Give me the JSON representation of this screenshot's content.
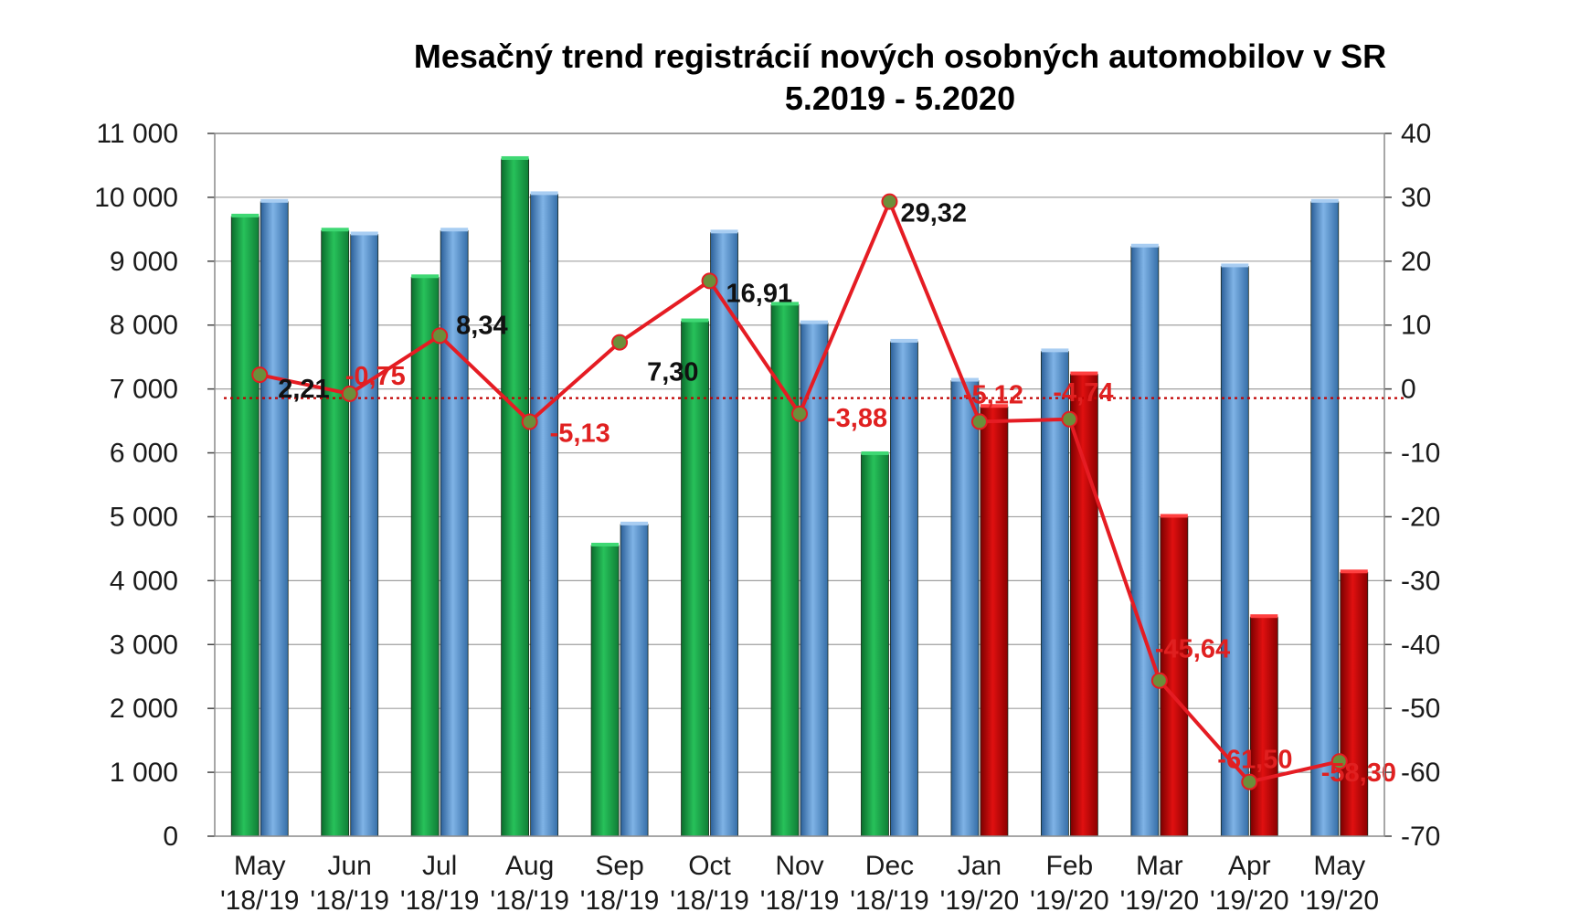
{
  "chart_data": {
    "type": "bar",
    "title": "Mesačný trend registrácií nových osobných automobilov  v SR",
    "subtitle": "5.2019 - 5.2020",
    "categories": [
      {
        "month": "May",
        "period": "'18/'19"
      },
      {
        "month": "Jun",
        "period": "'18/'19"
      },
      {
        "month": "Jul",
        "period": "'18/'19"
      },
      {
        "month": "Aug",
        "period": "'18/'19"
      },
      {
        "month": "Sep",
        "period": "'18/'19"
      },
      {
        "month": "Oct",
        "period": "'18/'19"
      },
      {
        "month": "Nov",
        "period": "'18/'19"
      },
      {
        "month": "Dec",
        "period": "'18/'19"
      },
      {
        "month": "Jan",
        "period": "'19/'20"
      },
      {
        "month": "Feb",
        "period": "'19/'20"
      },
      {
        "month": "Mar",
        "period": "'19/'20"
      },
      {
        "month": "Apr",
        "period": "'19/'20"
      },
      {
        "month": "May",
        "period": "'19/'20"
      }
    ],
    "series": [
      {
        "kind": "bar",
        "axis": "left",
        "position": "left",
        "colors": [
          "green",
          "green",
          "green",
          "green",
          "green",
          "green",
          "green",
          "green",
          "blue",
          "blue",
          "blue",
          "blue",
          "blue"
        ],
        "values": [
          9700,
          9480,
          8750,
          10600,
          4550,
          8060,
          8320,
          5980,
          7130,
          7590,
          9230,
          8920,
          9930
        ]
      },
      {
        "kind": "bar",
        "axis": "left",
        "position": "right",
        "colors": [
          "blue",
          "blue",
          "blue",
          "blue",
          "blue",
          "blue",
          "blue",
          "blue",
          "red",
          "red",
          "red",
          "red",
          "red"
        ],
        "values": [
          9930,
          9420,
          9480,
          10050,
          4880,
          9450,
          8030,
          7740,
          6720,
          7230,
          5000,
          3430,
          4130
        ]
      },
      {
        "kind": "line",
        "axis": "right",
        "values": [
          2.21,
          -0.75,
          8.34,
          -5.13,
          7.3,
          16.91,
          -3.88,
          29.32,
          -5.12,
          -4.74,
          -45.64,
          -61.5,
          -58.3
        ],
        "labels": [
          "2,21",
          "-0,75",
          "8,34",
          "-5,13",
          "7,30",
          "16,91",
          "-3,88",
          "29,32",
          "-5,12",
          "-4,74",
          "-45,64",
          "-61,50",
          "-58,30"
        ]
      }
    ],
    "left_axis": {
      "ylim": [
        0,
        11000
      ],
      "ticks": [
        "0",
        "1 000",
        "2 000",
        "3 000",
        "4 000",
        "5 000",
        "6 000",
        "7 000",
        "8 000",
        "9 000",
        "10 000",
        "11 000"
      ]
    },
    "right_axis": {
      "ylim": [
        -70,
        40
      ],
      "ticks": [
        "-70",
        "-60",
        "-50",
        "-40",
        "-30",
        "-20",
        "-10",
        "0",
        "10",
        "20",
        "30",
        "40"
      ]
    },
    "grid": true,
    "legend": "none",
    "colors": {
      "green_bar": "#19a14a",
      "blue_bar": "#4d8fd2",
      "red_bar": "#c00000",
      "line": "#e51c23",
      "marker": "#6b8f3a",
      "label_positive": "#111111",
      "label_negative": "#e02020"
    }
  }
}
